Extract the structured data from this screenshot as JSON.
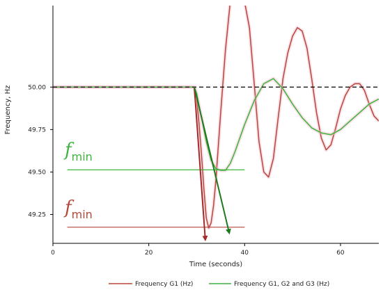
{
  "chart_data": {
    "type": "line",
    "title": "",
    "xlabel": "Time (seconds)",
    "ylabel": "Frequency, Hz",
    "xlim": [
      0,
      68
    ],
    "ylim": [
      49.08,
      50.48
    ],
    "x_ticks": [
      0,
      20,
      40,
      60
    ],
    "y_ticks": [
      49.25,
      49.5,
      49.75,
      50.0
    ],
    "x_tick_labels": [
      "0",
      "20",
      "40",
      "60"
    ],
    "y_tick_labels": [
      "49.25",
      "49.50",
      "49.75",
      "50.00"
    ],
    "grid": false,
    "legend_position": "bottom",
    "series": [
      {
        "name": "Frequency G1 (Hz)",
        "color": "#b5473a",
        "x": [
          0,
          29.5,
          30,
          30.5,
          31,
          31.5,
          32,
          32.5,
          33,
          33.5,
          34,
          35,
          36,
          37,
          38,
          39,
          40,
          41,
          42,
          43,
          44,
          45,
          46,
          47,
          48,
          49,
          50,
          51,
          52,
          53,
          54,
          55,
          56,
          57,
          58,
          59,
          60,
          61,
          62,
          63,
          64,
          65,
          66,
          67,
          68
        ],
        "y": [
          50.0,
          50.0,
          49.93,
          49.78,
          49.6,
          49.4,
          49.23,
          49.17,
          49.2,
          49.3,
          49.45,
          49.85,
          50.22,
          50.5,
          50.5,
          50.5,
          50.5,
          50.35,
          50.02,
          49.68,
          49.5,
          49.47,
          49.58,
          49.82,
          50.05,
          50.2,
          50.3,
          50.35,
          50.33,
          50.23,
          50.05,
          49.85,
          49.7,
          49.63,
          49.66,
          49.76,
          49.87,
          49.95,
          50.0,
          50.02,
          50.02,
          49.98,
          49.9,
          49.83,
          49.8
        ]
      },
      {
        "name": "Frequency G1, G2 and G3 (Hz)",
        "color": "#3db43d",
        "x": [
          0,
          29.5,
          30,
          31,
          32,
          33,
          34,
          35,
          36,
          37,
          38,
          40,
          42,
          44,
          46,
          48,
          50,
          52,
          54,
          56,
          58,
          60,
          62,
          64,
          66,
          68
        ],
        "y": [
          50.0,
          50.0,
          49.96,
          49.82,
          49.68,
          49.57,
          49.52,
          49.51,
          49.51,
          49.55,
          49.62,
          49.78,
          49.92,
          50.02,
          50.05,
          49.99,
          49.9,
          49.82,
          49.76,
          49.73,
          49.72,
          49.75,
          49.8,
          49.85,
          49.9,
          49.93
        ]
      }
    ],
    "reference_line": {
      "y": 50.0,
      "style": "dashed",
      "color": "#000000"
    },
    "annotations": [
      {
        "label": "f",
        "subscript": "min",
        "color": "#3db43d",
        "level_y": 49.513,
        "line_x": [
          3,
          40
        ]
      },
      {
        "label": "f",
        "subscript": "min",
        "color": "#b5473a",
        "level_y": 49.175,
        "line_x": [
          3,
          40
        ]
      }
    ],
    "arrows": [
      {
        "color": "#a52a2a",
        "from": [
          29.5,
          50.0
        ],
        "to": [
          31.8,
          49.1
        ]
      },
      {
        "color": "#1e7a1e",
        "from": [
          29.5,
          50.0
        ],
        "to": [
          36.8,
          49.14
        ]
      }
    ]
  }
}
